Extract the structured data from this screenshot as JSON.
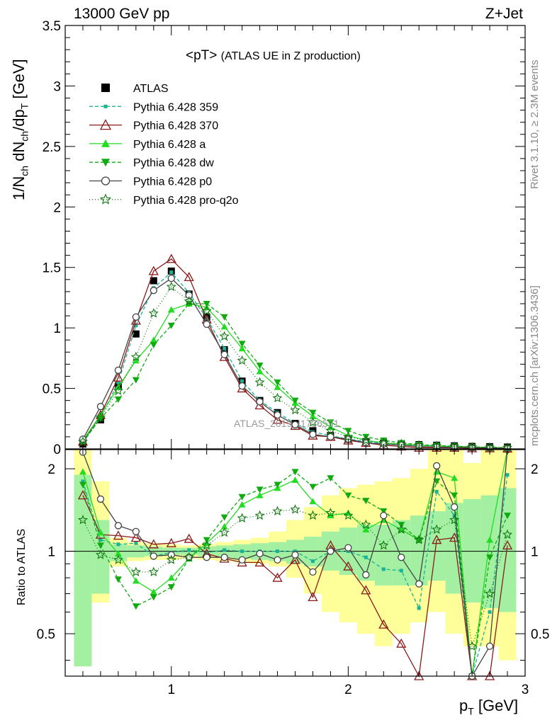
{
  "header": {
    "energy_label": "13000 GeV pp",
    "process_label": "Z+Jet"
  },
  "side": {
    "rivet_label": "Rivet 3.1.10, ≥ 2.3M events",
    "source_label": "mcplots.cern.ch [arXiv:1306.3436]"
  },
  "chart_data": [
    {
      "type": "line",
      "title": "<pT> (ATLAS UE in Z production)",
      "title_main": "<pT>",
      "title_sub": "(ATLAS UE in Z production)",
      "ylabel": "1/N_ch dN_ch/dp_T [GeV]",
      "xlabel": "",
      "xlim": [
        0.4,
        3.0
      ],
      "ylim": [
        0,
        3.5
      ],
      "yticks": [
        0,
        0.5,
        1,
        1.5,
        2,
        2.5,
        3,
        3.5
      ],
      "watermark": "ATLAS_2019_I1736531",
      "legend_position": "top-left",
      "x": [
        0.5,
        0.6,
        0.7,
        0.8,
        0.9,
        1.0,
        1.1,
        1.2,
        1.3,
        1.4,
        1.5,
        1.6,
        1.7,
        1.8,
        1.9,
        2.0,
        2.1,
        2.2,
        2.3,
        2.4,
        2.5,
        2.6,
        2.7,
        2.8,
        2.9
      ],
      "series": [
        {
          "name": "ATLAS",
          "color": "#000000",
          "marker": "square",
          "dash": "none",
          "values": [
            0.04,
            0.24,
            0.52,
            0.95,
            1.39,
            1.47,
            1.28,
            1.09,
            0.82,
            0.56,
            0.4,
            0.3,
            0.21,
            0.15,
            0.11,
            0.08,
            0.06,
            0.05,
            0.04,
            0.035,
            0.03,
            0.025,
            0.02,
            0.018,
            0.015
          ]
        },
        {
          "name": "Pythia 6.428 359",
          "color": "#1ab394",
          "marker": "small-square",
          "dash": "5,3",
          "values": [
            0.05,
            0.26,
            0.55,
            1.02,
            1.33,
            1.46,
            1.29,
            1.08,
            0.83,
            0.56,
            0.4,
            0.3,
            0.21,
            0.14,
            0.11,
            0.08,
            0.06,
            0.045,
            0.035,
            0.028,
            0.025,
            0.02,
            0.015,
            0.012,
            0.01
          ]
        },
        {
          "name": "Pythia 6.428 370",
          "color": "#8b1a1a",
          "marker": "open-triangle",
          "dash": "none",
          "values": [
            0.06,
            0.28,
            0.59,
            1.06,
            1.47,
            1.57,
            1.42,
            1.07,
            0.76,
            0.5,
            0.36,
            0.24,
            0.19,
            0.11,
            0.1,
            0.07,
            0.05,
            0.03,
            0.02,
            0.01,
            0.01,
            0.01,
            0.005,
            0.005,
            0.003
          ]
        },
        {
          "name": "Pythia 6.428 a",
          "color": "#22dd22",
          "marker": "triangle",
          "dash": "none",
          "values": [
            0.07,
            0.28,
            0.51,
            0.73,
            0.9,
            1.15,
            1.2,
            1.17,
            1.01,
            0.83,
            0.64,
            0.51,
            0.38,
            0.27,
            0.18,
            0.11,
            0.07,
            0.05,
            0.04,
            0.03,
            0.025,
            0.02,
            0.015,
            0.01,
            0.008
          ]
        },
        {
          "name": "Pythia 6.428 dw",
          "color": "#11aa11",
          "marker": "down-triangle",
          "dash": "5,3",
          "values": [
            0.06,
            0.25,
            0.41,
            0.57,
            0.86,
            1.02,
            1.2,
            1.2,
            1.09,
            0.87,
            0.69,
            0.55,
            0.4,
            0.3,
            0.22,
            0.15,
            0.1,
            0.07,
            0.05,
            0.035,
            0.028,
            0.022,
            0.017,
            0.013,
            0.01
          ]
        },
        {
          "name": "Pythia 6.428 p0",
          "color": "#444444",
          "marker": "open-circle",
          "dash": "none",
          "values": [
            0.08,
            0.35,
            0.65,
            1.09,
            1.31,
            1.41,
            1.27,
            1.03,
            0.78,
            0.52,
            0.39,
            0.28,
            0.2,
            0.12,
            0.1,
            0.08,
            0.05,
            0.04,
            0.03,
            0.02,
            0.015,
            0.012,
            0.01,
            0.008,
            0.006
          ]
        },
        {
          "name": "Pythia 6.428 pro-q2o",
          "color": "#117711",
          "marker": "star",
          "dash": "1,3",
          "values": [
            0.06,
            0.26,
            0.48,
            0.76,
            1.12,
            1.34,
            1.22,
            1.14,
            0.93,
            0.73,
            0.55,
            0.42,
            0.32,
            0.22,
            0.15,
            0.1,
            0.07,
            0.05,
            0.04,
            0.03,
            0.025,
            0.02,
            0.015,
            0.012,
            0.01
          ]
        }
      ]
    },
    {
      "type": "line",
      "title": "",
      "ylabel": "Ratio to ATLAS",
      "xlabel": "p_T [GeV]",
      "xlim": [
        0.4,
        3.0
      ],
      "ylim": [
        0.35,
        2.35
      ],
      "log_scale_y": true,
      "yticks": [
        0.5,
        1,
        2
      ],
      "xticks": [
        1,
        2,
        3
      ],
      "reference_line": 1,
      "bands": [
        {
          "name": "stat",
          "color": "#a3f0a3",
          "lower": [
            0.38,
            0.7,
            0.92,
            0.95,
            0.96,
            0.97,
            0.97,
            0.96,
            0.95,
            0.94,
            0.93,
            0.92,
            0.9,
            0.88,
            0.85,
            0.82,
            0.78,
            0.75,
            0.75,
            0.75,
            0.78,
            0.7,
            0.65,
            0.62,
            0.6
          ],
          "upper": [
            1.9,
            1.3,
            1.06,
            1.05,
            1.04,
            1.03,
            1.03,
            1.04,
            1.05,
            1.06,
            1.07,
            1.08,
            1.1,
            1.13,
            1.18,
            1.22,
            1.25,
            1.25,
            1.3,
            1.35,
            1.4,
            1.5,
            1.55,
            1.6,
            1.7
          ]
        },
        {
          "name": "syst",
          "color": "#ffff99",
          "lower": [
            0.38,
            0.65,
            0.88,
            0.92,
            0.93,
            0.93,
            0.94,
            0.93,
            0.92,
            0.91,
            0.9,
            0.88,
            0.8,
            0.7,
            0.6,
            0.55,
            0.5,
            0.45,
            0.5,
            0.55,
            0.6,
            0.5,
            0.45,
            0.45,
            0.4
          ],
          "upper": [
            2.35,
            1.8,
            1.12,
            1.08,
            1.07,
            1.06,
            1.05,
            1.06,
            1.08,
            1.1,
            1.12,
            1.18,
            1.3,
            1.45,
            1.6,
            1.7,
            1.75,
            1.8,
            1.85,
            2.0,
            2.35,
            2.35,
            2.1,
            2.35,
            2.35
          ]
        }
      ],
      "series": [
        {
          "name": "Pythia 6.428 359",
          "color": "#1ab394",
          "marker": "small-square",
          "dash": "5,3",
          "values": [
            1.8,
            1.1,
            1.06,
            1.07,
            0.96,
            0.99,
            1.01,
            0.99,
            1.01,
            1.0,
            1.0,
            1.0,
            1.0,
            0.92,
            1.0,
            1.0,
            0.95,
            0.86,
            0.85,
            0.62,
            1.65,
            1.35,
            0.32,
            0.6,
            1.9
          ]
        },
        {
          "name": "Pythia 6.428 370",
          "color": "#8b1a1a",
          "marker": "open-triangle",
          "dash": "none",
          "values": [
            1.6,
            1.15,
            1.14,
            1.12,
            1.06,
            1.07,
            1.11,
            0.98,
            0.94,
            0.91,
            0.91,
            0.8,
            0.93,
            0.68,
            1.05,
            0.88,
            0.72,
            0.54,
            0.46,
            0.3,
            1.1,
            1.12,
            0.28,
            0.35,
            1.05
          ]
        },
        {
          "name": "Pythia 6.428 a",
          "color": "#22dd22",
          "marker": "triangle",
          "dash": "none",
          "values": [
            1.95,
            1.17,
            0.98,
            0.78,
            0.71,
            0.8,
            0.94,
            1.07,
            1.23,
            1.48,
            1.6,
            1.7,
            1.82,
            1.52,
            1.35,
            1.38,
            1.2,
            1.3,
            1.2,
            1.1,
            1.95,
            1.85,
            0.35,
            1.1,
            2.35
          ]
        },
        {
          "name": "Pythia 6.428 dw",
          "color": "#11aa11",
          "marker": "down-triangle",
          "dash": "5,3",
          "values": [
            1.75,
            1.05,
            0.79,
            0.63,
            0.68,
            0.74,
            0.94,
            1.1,
            1.33,
            1.58,
            1.68,
            1.75,
            1.95,
            1.72,
            1.85,
            1.6,
            1.53,
            1.4,
            1.25,
            1.1,
            1.8,
            1.6,
            0.32,
            0.95,
            1.35
          ]
        },
        {
          "name": "Pythia 6.428 p0",
          "color": "#444444",
          "marker": "open-circle",
          "dash": "none",
          "values": [
            2.3,
            1.55,
            1.24,
            1.18,
            0.96,
            0.97,
            0.95,
            0.95,
            0.95,
            0.93,
            0.98,
            0.93,
            0.97,
            0.84,
            1.0,
            1.03,
            0.82,
            1.35,
            0.95,
            0.76,
            2.05,
            1.45,
            0.32,
            0.45,
            2.35
          ]
        },
        {
          "name": "Pythia 6.428 pro-q2o",
          "color": "#117711",
          "marker": "star",
          "dash": "1,3",
          "values": [
            1.3,
            0.97,
            0.93,
            0.84,
            0.84,
            0.93,
            0.95,
            1.05,
            1.17,
            1.32,
            1.35,
            1.4,
            1.42,
            1.35,
            1.38,
            1.35,
            1.25,
            1.05,
            1.2,
            1.1,
            1.2,
            1.3,
            0.45,
            0.7,
            1.15
          ]
        }
      ]
    }
  ]
}
